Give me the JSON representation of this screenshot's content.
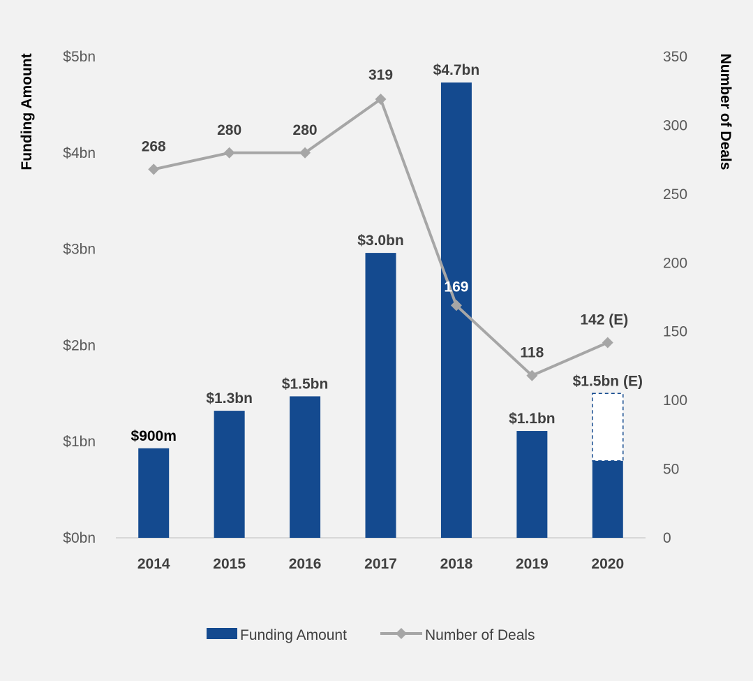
{
  "chart_data": {
    "type": "bar",
    "categories": [
      "2014",
      "2015",
      "2016",
      "2017",
      "2018",
      "2019",
      "2020"
    ],
    "y_left": {
      "label": "Funding Amount",
      "range": [
        0,
        5
      ],
      "ticks": [
        0,
        1,
        2,
        3,
        4,
        5
      ],
      "tick_labels": [
        "$0bn",
        "$1bn",
        "$2bn",
        "$3bn",
        "$4bn",
        "$5bn"
      ]
    },
    "y_right": {
      "label": "Number of Deals",
      "range": [
        0,
        350
      ],
      "ticks": [
        0,
        50,
        100,
        150,
        200,
        250,
        300,
        350
      ],
      "tick_labels": [
        "0",
        "50",
        "100",
        "150",
        "200",
        "250",
        "300",
        "350"
      ]
    },
    "series": [
      {
        "name": "Funding Amount",
        "type": "bar",
        "axis": "left",
        "color": "#144a8f",
        "values": [
          0.93,
          1.32,
          1.47,
          2.96,
          4.73,
          1.11,
          0.8
        ],
        "estimated_total": [
          null,
          null,
          null,
          null,
          null,
          null,
          1.5
        ],
        "labels": [
          "$900m",
          "$1.3bn",
          "$1.5bn",
          "$3.0bn",
          "$4.7bn",
          "$1.1bn",
          "$1.5bn (E)"
        ]
      },
      {
        "name": "Number of Deals",
        "type": "line",
        "axis": "right",
        "color": "#a6a6a6",
        "values": [
          268,
          280,
          280,
          319,
          169,
          118,
          142
        ],
        "labels": [
          "268",
          "280",
          "280",
          "319",
          "169",
          "118",
          "142 (E)"
        ]
      }
    ],
    "legend": [
      "Funding Amount",
      "Number of Deals"
    ],
    "legend_position": "bottom",
    "grid": false
  }
}
